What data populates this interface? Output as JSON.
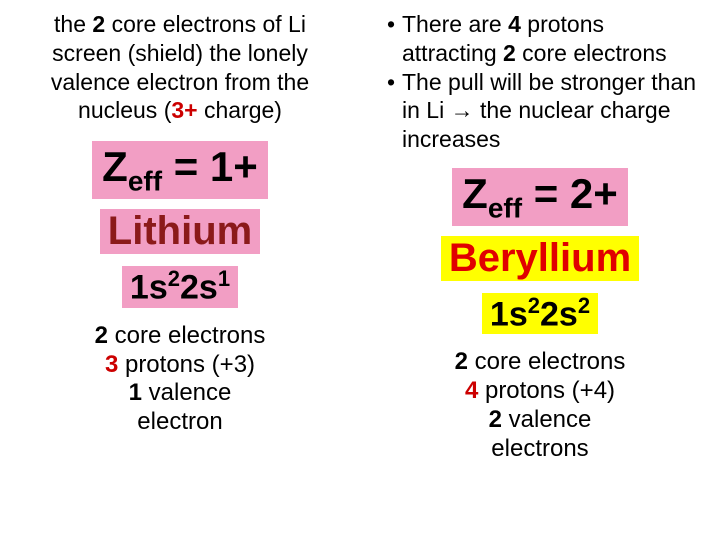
{
  "colors": {
    "pink_bg": "#f29ec4",
    "yellow_bg": "#ffff00",
    "darkred_text": "#8b1a1a",
    "red_text": "#e00000",
    "bold_red": "#cc0000",
    "black": "#000000",
    "white_bg": "#ffffff"
  },
  "left": {
    "intro_parts": {
      "a": "the ",
      "b": "2",
      "c": " core electrons of Li screen (shield) the lonely valence electron from the nucleus (",
      "d": "3+",
      "e": " charge)"
    },
    "zeff_parts": {
      "z": "Z",
      "sub": "eff",
      "rest": " = 1+"
    },
    "element": "Lithium",
    "config_parts": {
      "a": "1s",
      "a_sup": "2",
      "b": "2s",
      "b_sup": "1"
    },
    "summary_parts": {
      "l1_a": "2",
      "l1_b": " core electrons",
      "l2_a": "3",
      "l2_b": " protons (+3)",
      "l3_a": "1",
      "l3_b": " valence",
      "l4": "electron"
    }
  },
  "right": {
    "bullets": {
      "b1_a": "There are ",
      "b1_b": "4",
      "b1_c": " protons attracting ",
      "b1_d": "2",
      "b1_e": " core electrons",
      "b2_a": "The pull will be stronger than in Li ",
      "b2_arrow": "→",
      "b2_b": " the nuclear charge increases"
    },
    "zeff_parts": {
      "z": "Z",
      "sub": "eff",
      "rest": " = 2+"
    },
    "element": "Beryllium",
    "config_parts": {
      "a": "1s",
      "a_sup": "2",
      "b": "2s",
      "b_sup": "2"
    },
    "summary_parts": {
      "l1_a": "2",
      "l1_b": " core electrons",
      "l2_a": "4",
      "l2_b": " protons (+4)",
      "l3_a": "2",
      "l3_b": " valence",
      "l4": "electrons"
    }
  }
}
